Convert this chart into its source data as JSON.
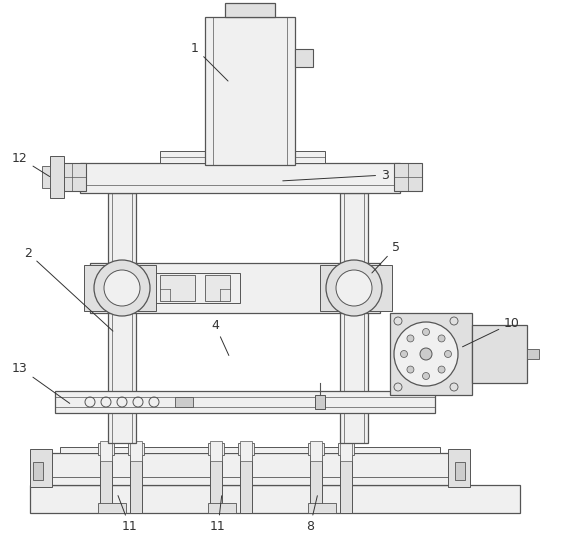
{
  "background_color": "#ffffff",
  "line_color": "#555555",
  "label_color": "#333333",
  "lw": 0.9,
  "fig_w": 5.67,
  "fig_h": 5.43,
  "dpi": 100
}
